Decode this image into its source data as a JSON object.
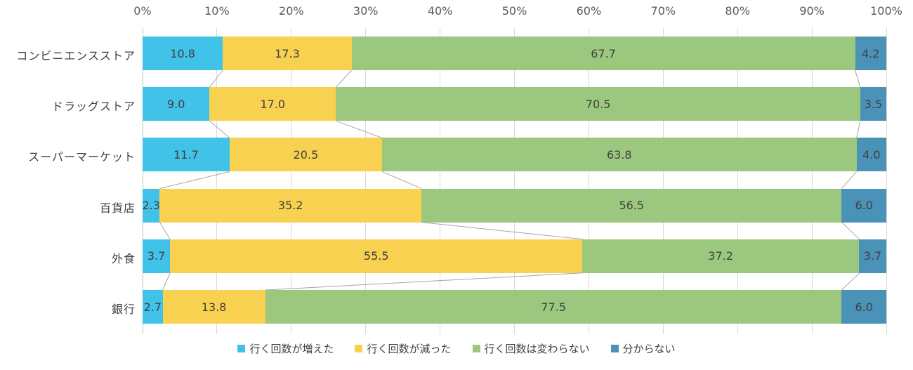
{
  "chart_data": {
    "type": "bar",
    "orientation": "horizontal",
    "stacked": true,
    "title": "",
    "xlabel": "",
    "ylabel": "",
    "xlim": [
      0,
      100
    ],
    "grid": true,
    "legend_position": "bottom",
    "axis_position": "top",
    "x_ticks": [
      "0%",
      "10%",
      "20%",
      "30%",
      "40%",
      "50%",
      "60%",
      "70%",
      "80%",
      "90%",
      "100%"
    ],
    "categories": [
      "コンビニエンスストア",
      "ドラッグストア",
      "スーパーマーケット",
      "百貨店",
      "外食",
      "銀行"
    ],
    "series": [
      {
        "name": "行く回数が増えた",
        "color": "#41C2E8",
        "values": [
          10.8,
          9.0,
          11.7,
          2.3,
          3.7,
          2.7
        ],
        "labels": [
          "10.8",
          "9.0",
          "11.7",
          "2.3",
          "3.7",
          "2.7"
        ]
      },
      {
        "name": "行く回数が減った",
        "color": "#F9D150",
        "values": [
          17.3,
          17.0,
          20.5,
          35.2,
          55.5,
          13.8
        ],
        "labels": [
          "17.3",
          "17.0",
          "20.5",
          "35.2",
          "55.5",
          "13.8"
        ]
      },
      {
        "name": "行く回数は変わらない",
        "color": "#9BC87E",
        "values": [
          67.7,
          70.5,
          63.8,
          56.5,
          37.2,
          77.5
        ],
        "labels": [
          "67.7",
          "70.5",
          "63.8",
          "56.5",
          "37.2",
          "77.5"
        ]
      },
      {
        "name": "分からない",
        "color": "#4A92B7",
        "values": [
          4.2,
          3.5,
          4.0,
          6.0,
          3.7,
          6.0
        ],
        "labels": [
          "4.2",
          "3.5",
          "4.0",
          "6.0",
          "3.7",
          "6.0"
        ]
      }
    ]
  },
  "styles": {
    "background": "#FFFFFF",
    "grid_color": "#D9D9D9",
    "axis_line_color": "#BFBFBF",
    "connector_color": "#A6A6A6",
    "value_label_color": "#404040",
    "axis_label_color": "#595959"
  }
}
